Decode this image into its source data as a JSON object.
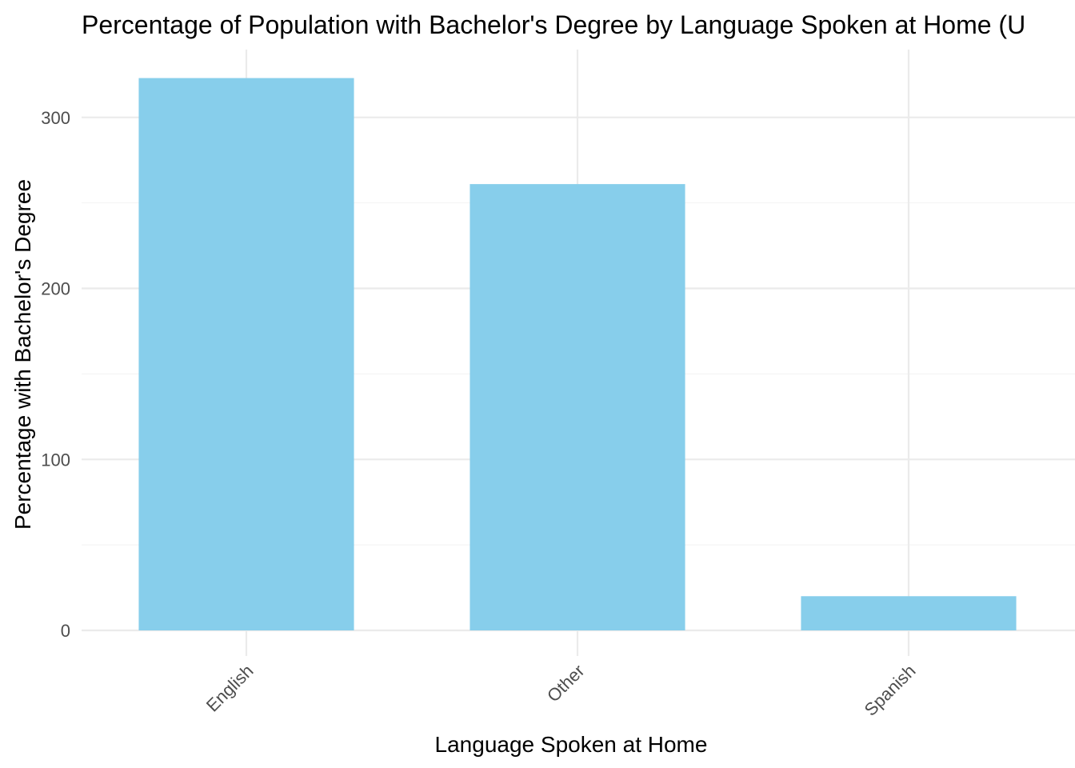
{
  "chart_data": {
    "type": "bar",
    "title": "Percentage of Population with Bachelor's Degree by Language Spoken at Home (U",
    "xlabel": "Language Spoken at Home",
    "ylabel": "Percentage with Bachelor's Degree",
    "categories": [
      "English",
      "Other",
      "Spanish"
    ],
    "values": [
      323,
      261,
      20
    ],
    "ylim": [
      0,
      340
    ],
    "yticks": [
      0,
      100,
      200,
      300
    ],
    "ytick_labels": [
      "0",
      "100",
      "200",
      "300"
    ],
    "grid": true,
    "bar_color": "#87CEEB",
    "xtick_rotation": -45
  }
}
